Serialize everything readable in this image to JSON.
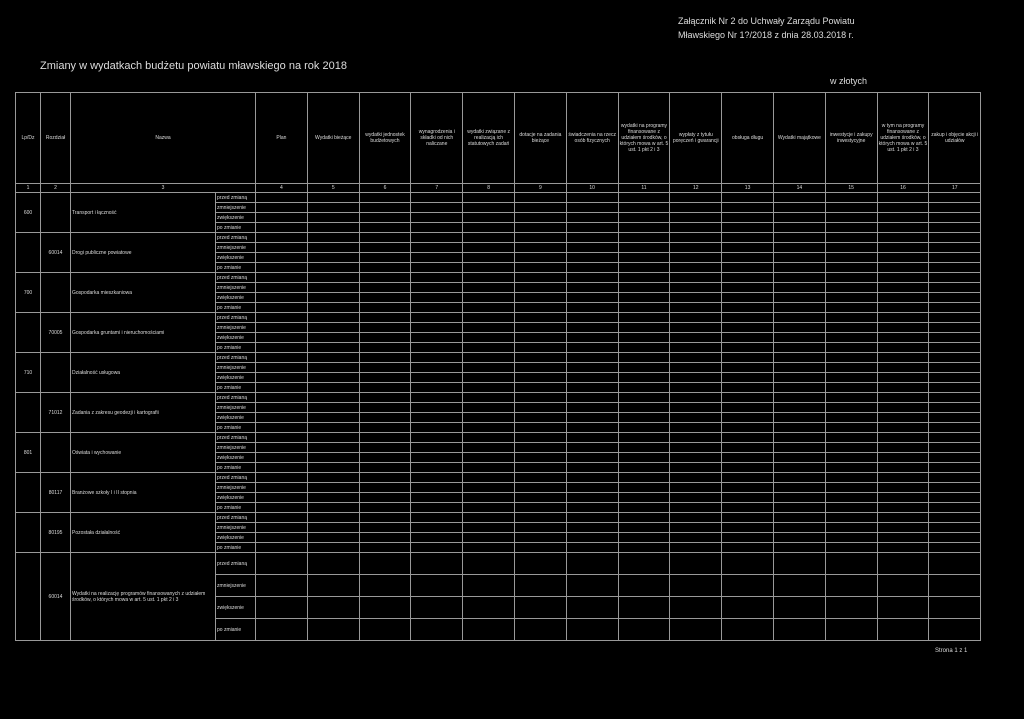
{
  "header": {
    "annex": "Załącznik Nr 2 do Uchwały Zarządu Powiatu",
    "annex2": "Mławskiego Nr 1?/2018 z dnia 28.03.2018 r.",
    "title": "Zmiany w wydatkach budżetu powiatu mławskiego na rok 2018",
    "unit": "w złotych"
  },
  "table": {
    "columns": [
      "Lp/Dz",
      "Rozdział",
      "Nazwa",
      "Plan",
      "Wydatki bieżące",
      "wydatki jednostek budżetowych",
      "wynagrodzenia i składki od nich naliczane",
      "wydatki związane z realizacją ich statutowych zadań",
      "dotacje na zadania bieżące",
      "świadczenia na rzecz osób fizycznych",
      "wydatki na programy finansowane z udziałem środków, o których mowa w art. 5 ust. 1 pkt 2 i 3",
      "wypłaty z tytułu poręczeń i gwarancji",
      "obsługa długu",
      "Wydatki majątkowe",
      "inwestycje i zakupy inwestycyjne",
      "w tym na programy finansowane z udziałem środków, o których mowa w art. 5 ust. 1 pkt 2 i 3",
      "zakup i objęcie akcji i udziałów"
    ],
    "numbers": [
      1,
      2,
      3,
      4,
      5,
      6,
      7,
      8,
      9,
      10,
      11,
      12,
      13,
      14,
      15,
      16,
      17
    ],
    "row_labels": [
      "przed zmianą",
      "zmniejszenie",
      "zwiększenie",
      "po zmianie"
    ],
    "sections": [
      {
        "code": "600",
        "name": "Transport i łączność"
      },
      {
        "code": "60014",
        "name": "Drogi publiczne powiatowe"
      },
      {
        "code": "700",
        "name": "Gospodarka mieszkaniowa"
      },
      {
        "code": "70005",
        "name": "Gospodarka gruntami i nieruchomościami"
      },
      {
        "code": "710",
        "name": "Działalność usługowa"
      },
      {
        "code": "71012",
        "name": "Zadania z zakresu geodezji i kartografii"
      },
      {
        "code": "801",
        "name": "Oświata i wychowanie"
      },
      {
        "code": "80117",
        "name": "Branżowe szkoły I i II stopnia"
      },
      {
        "code": "80195",
        "name": "Pozostała działalność"
      },
      {
        "code": "60014",
        "name": "Wydatki na realizację programów finansowanych z udziałem środków, o których mowa w art. 5 ust. 1 pkt 2 i 3"
      }
    ]
  },
  "footer": {
    "page": "Strona 1 z 1"
  }
}
